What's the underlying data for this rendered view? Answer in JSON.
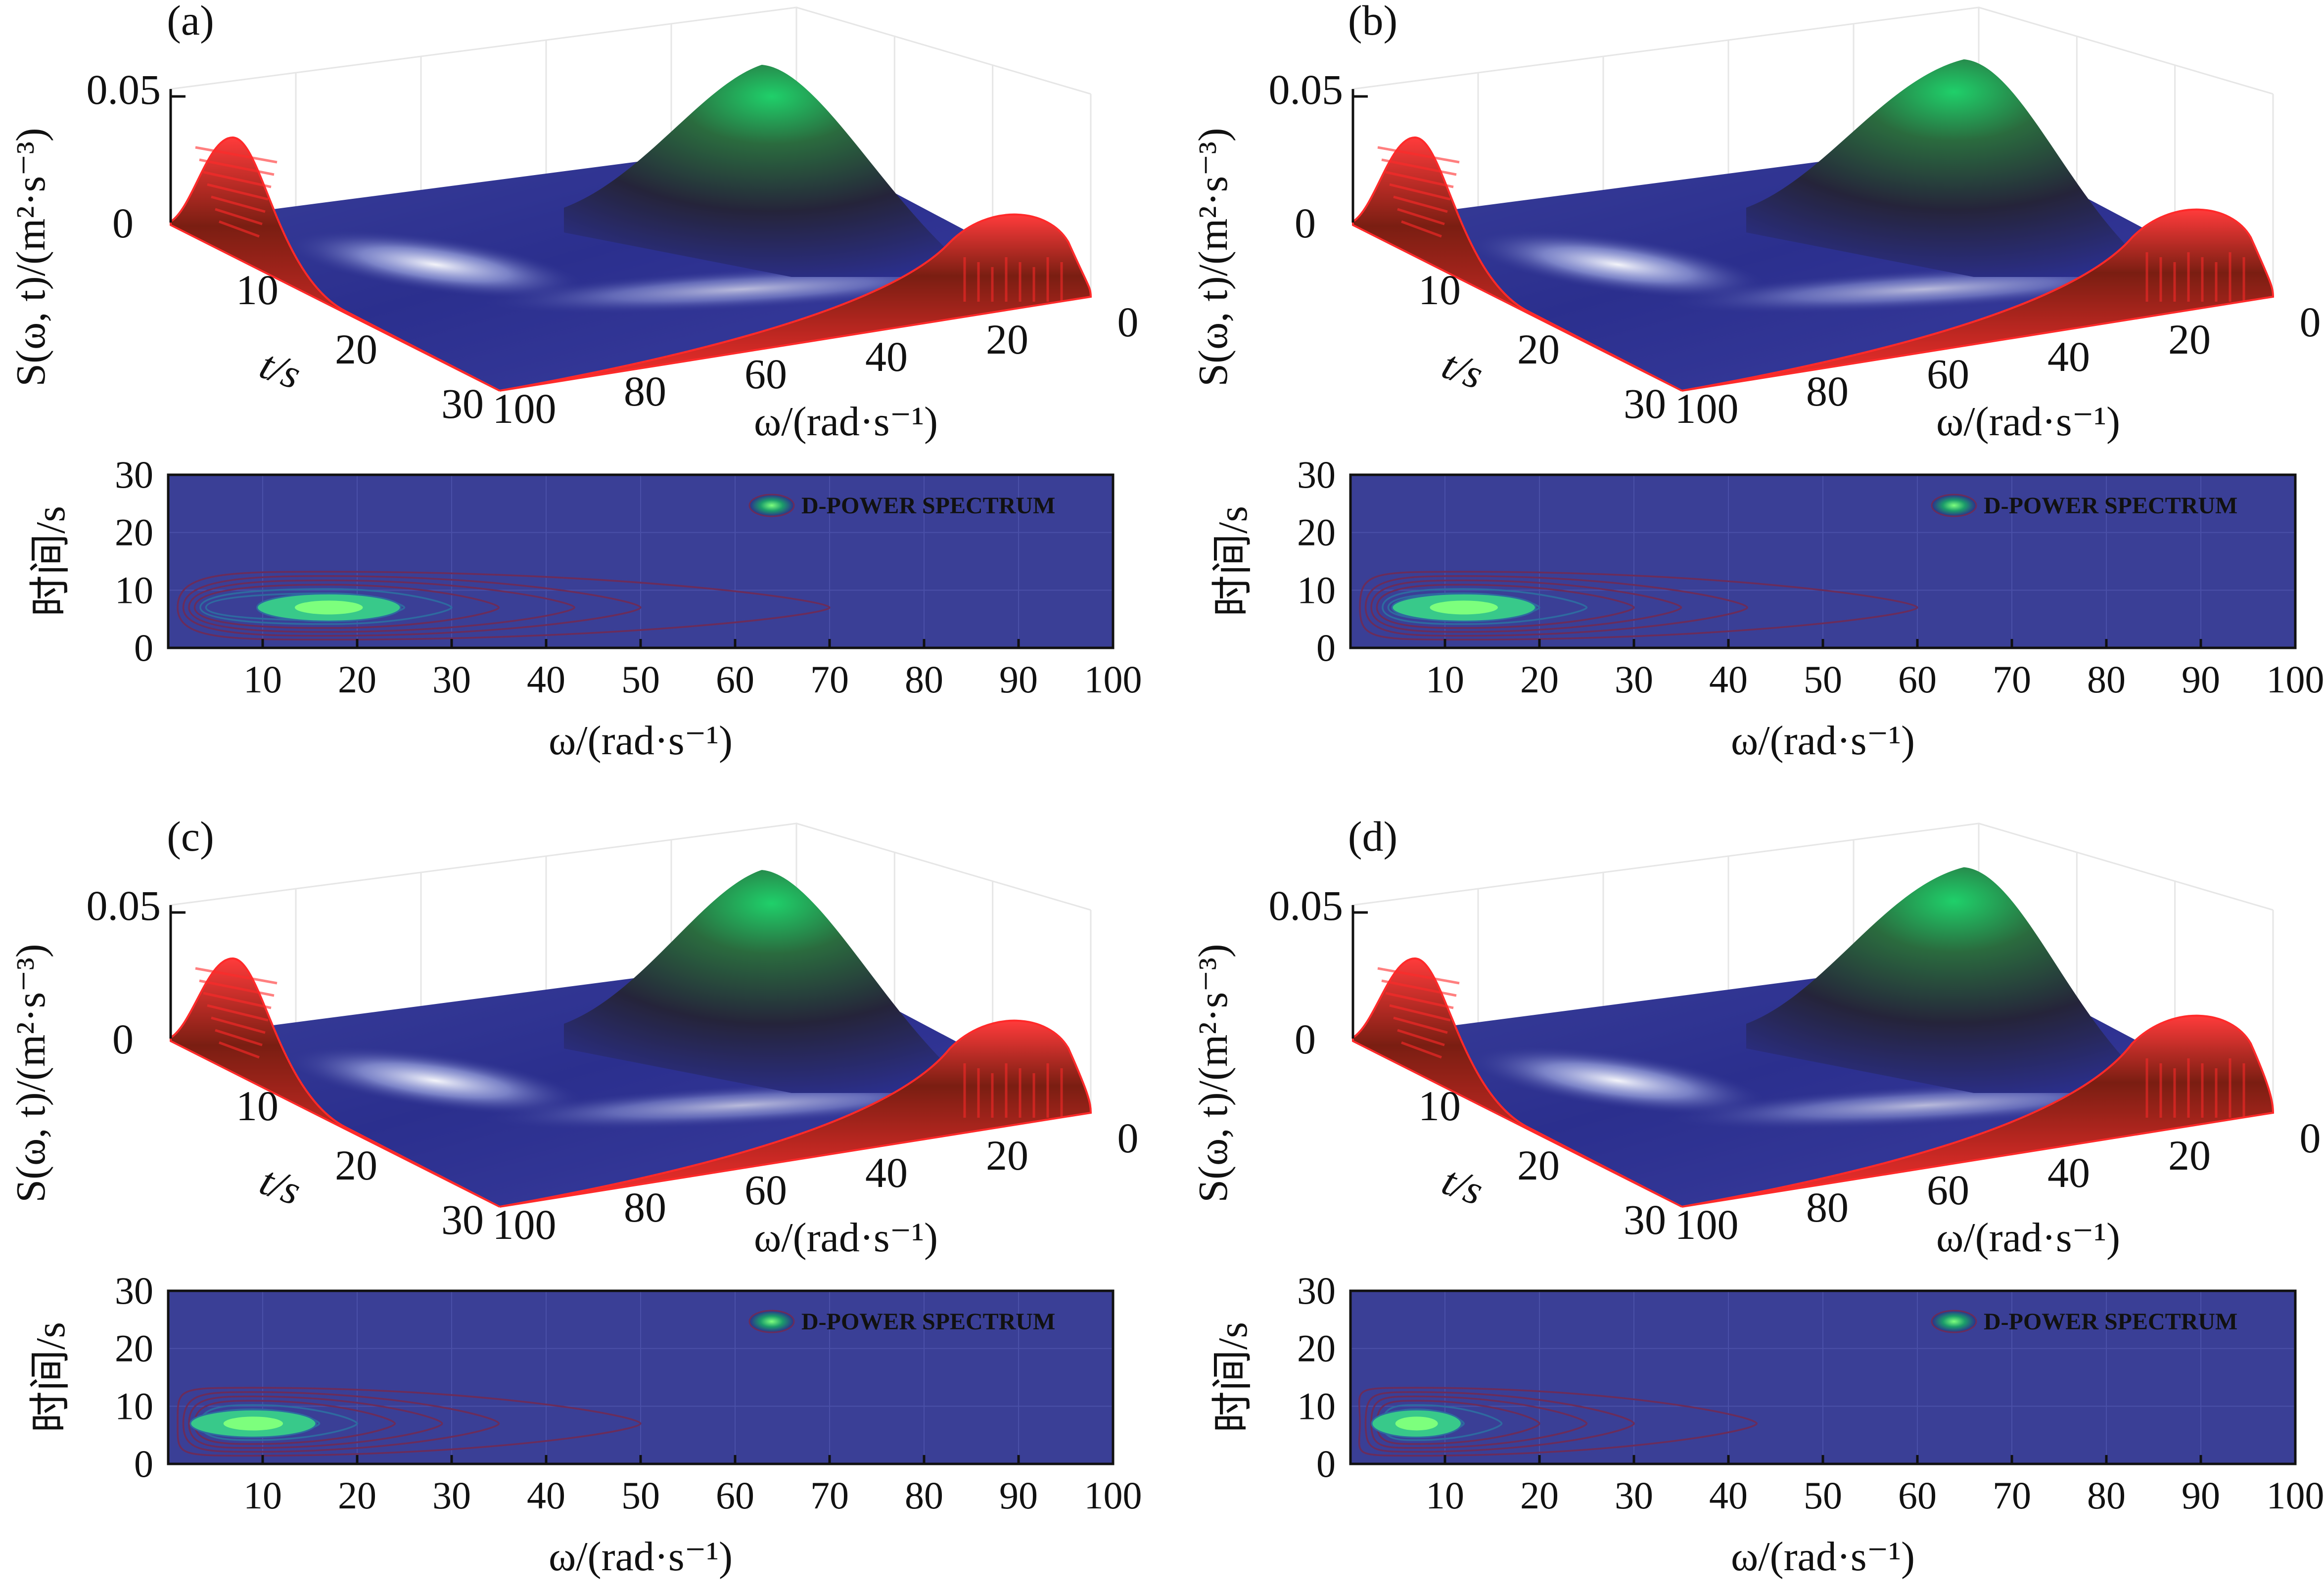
{
  "chart_data": [
    {
      "type": "heatmap",
      "panel_label": "(a)",
      "surface_3d": {
        "zlabel": "S(ω, t)/(m²·s⁻³)",
        "zticks": [
          "0",
          "0.05"
        ],
        "tlabel": "t/s",
        "tticks": [
          "10",
          "20",
          "30"
        ],
        "wlabel": "ω/(rad·s⁻¹)",
        "wticks": [
          "100",
          "80",
          "60",
          "40",
          "20",
          "0"
        ],
        "peak_value": 0.058
      },
      "contour_2d": {
        "xlabel": "ω/(rad·s⁻¹)",
        "ylabel": "时间/s",
        "xticks": [
          "10",
          "20",
          "30",
          "40",
          "50",
          "60",
          "70",
          "80",
          "90",
          "100"
        ],
        "yticks": [
          "0",
          "10",
          "20",
          "30"
        ],
        "xlim": [
          0,
          100
        ],
        "ylim": [
          0,
          30
        ],
        "legend": "D-POWER SPECTRUM",
        "peak_omega": 17,
        "peak_time": 7,
        "contour_extent_omega": [
          70,
          50,
          43,
          35,
          30,
          25
        ]
      }
    },
    {
      "type": "heatmap",
      "panel_label": "(b)",
      "surface_3d": {
        "zlabel": "S(ω, t)/(m²·s⁻³)",
        "zticks": [
          "0",
          "0.05"
        ],
        "tlabel": "t/s",
        "tticks": [
          "10",
          "20",
          "30"
        ],
        "wlabel": "ω/(rad·s⁻¹)",
        "wticks": [
          "100",
          "80",
          "60",
          "40",
          "20",
          "0"
        ],
        "peak_value": 0.06
      },
      "contour_2d": {
        "xlabel": "ω/(rad·s⁻¹)",
        "ylabel": "时间/s",
        "xticks": [
          "10",
          "20",
          "30",
          "40",
          "50",
          "60",
          "70",
          "80",
          "90",
          "100"
        ],
        "yticks": [
          "0",
          "10",
          "20",
          "30"
        ],
        "xlim": [
          0,
          100
        ],
        "ylim": [
          0,
          30
        ],
        "legend": "D-POWER SPECTRUM",
        "peak_omega": 12,
        "peak_time": 7,
        "contour_extent_omega": [
          60,
          42,
          35,
          30,
          25,
          20
        ]
      }
    },
    {
      "type": "heatmap",
      "panel_label": "(c)",
      "surface_3d": {
        "zlabel": "S(ω, t)/(m²·s⁻³)",
        "zticks": [
          "0",
          "0.05"
        ],
        "tlabel": "t/s",
        "tticks": [
          "10",
          "20",
          "30"
        ],
        "wlabel": "ω/(rad·s⁻¹)",
        "wticks": [
          "100",
          "80",
          "60",
          "40",
          "20",
          "0"
        ],
        "peak_value": 0.062
      },
      "contour_2d": {
        "xlabel": "ω/(rad·s⁻¹)",
        "ylabel": "时间/s",
        "xticks": [
          "10",
          "20",
          "30",
          "40",
          "50",
          "60",
          "70",
          "80",
          "90",
          "100"
        ],
        "yticks": [
          "0",
          "10",
          "20",
          "30"
        ],
        "xlim": [
          0,
          100
        ],
        "ylim": [
          0,
          30
        ],
        "legend": "D-POWER SPECTRUM",
        "peak_omega": 9,
        "peak_time": 7,
        "contour_extent_omega": [
          50,
          35,
          29,
          24,
          20,
          16
        ]
      }
    },
    {
      "type": "heatmap",
      "panel_label": "(d)",
      "surface_3d": {
        "zlabel": "S(ω, t)/(m²·s⁻³)",
        "zticks": [
          "0",
          "0.05"
        ],
        "tlabel": "t/s",
        "tticks": [
          "10",
          "20",
          "30"
        ],
        "wlabel": "ω/(rad·s⁻¹)",
        "wticks": [
          "100",
          "80",
          "60",
          "40",
          "20",
          "0"
        ],
        "peak_value": 0.063
      },
      "contour_2d": {
        "xlabel": "ω/(rad·s⁻¹)",
        "ylabel": "时间/s",
        "xticks": [
          "10",
          "20",
          "30",
          "40",
          "50",
          "60",
          "70",
          "80",
          "90",
          "100"
        ],
        "yticks": [
          "0",
          "10",
          "20",
          "30"
        ],
        "xlim": [
          0,
          100
        ],
        "ylim": [
          0,
          30
        ],
        "legend": "D-POWER SPECTRUM",
        "peak_omega": 7,
        "peak_time": 7,
        "contour_extent_omega": [
          43,
          30,
          25,
          20,
          16,
          12
        ]
      }
    }
  ]
}
